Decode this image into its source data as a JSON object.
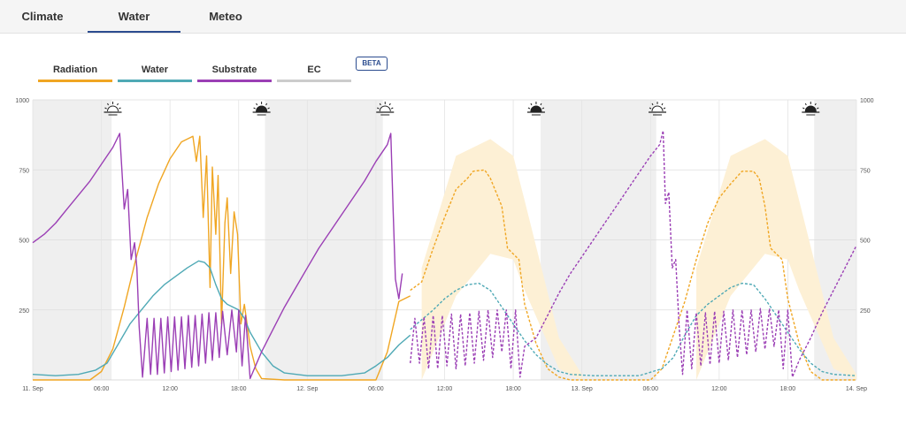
{
  "tabs": [
    {
      "label": "Climate",
      "active": false
    },
    {
      "label": "Water",
      "active": true
    },
    {
      "label": "Meteo",
      "active": false
    }
  ],
  "legend": [
    {
      "label": "Radiation",
      "color": "#f0a623"
    },
    {
      "label": "Water",
      "color": "#4fa9b5"
    },
    {
      "label": "Substrate",
      "color": "#9b3fb5"
    },
    {
      "label": "EC",
      "color": "#cccccc"
    }
  ],
  "beta_label": "BETA",
  "chart_data": {
    "type": "line",
    "ylim": [
      0,
      1000
    ],
    "y_ticks": [
      250,
      500,
      750,
      1000
    ],
    "x_ticks": [
      "11. Sep",
      "06:00",
      "12:00",
      "18:00",
      "12. Sep",
      "06:00",
      "12:00",
      "18:00",
      "13. Sep",
      "06:00",
      "12:00",
      "18:00",
      "14. Sep"
    ],
    "x_unit": "hours since 11. Sep 00:00",
    "night_shading": [
      [
        0,
        6.9
      ],
      [
        20.3,
        30.6
      ],
      [
        44.4,
        54.5
      ],
      [
        68.3,
        72
      ]
    ],
    "sunrise_hours": [
      7.0,
      30.8,
      54.6
    ],
    "sunset_hours": [
      20.0,
      44.0,
      68.0
    ],
    "forecast_start_hour": 33,
    "forecast_band": {
      "color": "#fdf0d5",
      "days": [
        {
          "x": [
            34,
            37,
            40,
            42,
            43,
            46,
            48
          ],
          "upper": [
            400,
            800,
            860,
            800,
            640,
            150,
            20
          ],
          "lower": [
            0,
            300,
            450,
            430,
            320,
            40,
            0
          ]
        },
        {
          "x": [
            58,
            61,
            64,
            66,
            67,
            70,
            72
          ],
          "upper": [
            400,
            800,
            860,
            800,
            640,
            150,
            20
          ],
          "lower": [
            0,
            300,
            450,
            430,
            320,
            40,
            0
          ]
        }
      ]
    },
    "series": [
      {
        "name": "Radiation",
        "color": "#f0a623",
        "dashed": false,
        "points": [
          [
            0,
            0
          ],
          [
            5,
            0
          ],
          [
            6,
            30
          ],
          [
            7,
            110
          ],
          [
            8,
            260
          ],
          [
            9,
            430
          ],
          [
            10,
            580
          ],
          [
            11,
            700
          ],
          [
            12,
            790
          ],
          [
            13,
            850
          ],
          [
            14,
            870
          ],
          [
            14.3,
            780
          ],
          [
            14.6,
            870
          ],
          [
            14.9,
            580
          ],
          [
            15.2,
            800
          ],
          [
            15.5,
            330
          ],
          [
            15.7,
            760
          ],
          [
            16,
            520
          ],
          [
            16.2,
            730
          ],
          [
            16.5,
            200
          ],
          [
            16.8,
            560
          ],
          [
            17,
            650
          ],
          [
            17.3,
            380
          ],
          [
            17.6,
            600
          ],
          [
            17.9,
            520
          ],
          [
            18.2,
            200
          ],
          [
            18.5,
            270
          ],
          [
            19,
            120
          ],
          [
            19.5,
            40
          ],
          [
            20,
            5
          ],
          [
            22,
            0
          ],
          [
            30,
            0
          ],
          [
            31,
            100
          ],
          [
            32,
            280
          ],
          [
            33,
            300
          ]
        ]
      },
      {
        "name": "Radiation forecast",
        "color": "#f0a623",
        "dashed": true,
        "points": [
          [
            33,
            320
          ],
          [
            34,
            350
          ],
          [
            35,
            470
          ],
          [
            36,
            580
          ],
          [
            37,
            680
          ],
          [
            38,
            720
          ],
          [
            38.5,
            745
          ],
          [
            39.5,
            750
          ],
          [
            40,
            720
          ],
          [
            41,
            620
          ],
          [
            41.5,
            470
          ],
          [
            42.5,
            430
          ],
          [
            43,
            270
          ],
          [
            44,
            130
          ],
          [
            45,
            40
          ],
          [
            46,
            10
          ],
          [
            47,
            0
          ],
          [
            54,
            0
          ],
          [
            55,
            40
          ],
          [
            56,
            160
          ],
          [
            57,
            280
          ],
          [
            58,
            430
          ],
          [
            59,
            560
          ],
          [
            60,
            650
          ],
          [
            61,
            700
          ],
          [
            62,
            745
          ],
          [
            63,
            745
          ],
          [
            63.5,
            720
          ],
          [
            64,
            620
          ],
          [
            64.5,
            470
          ],
          [
            65.5,
            430
          ],
          [
            66,
            290
          ],
          [
            67,
            130
          ],
          [
            68,
            30
          ],
          [
            69,
            0
          ],
          [
            72,
            0
          ]
        ]
      },
      {
        "name": "Water",
        "color": "#4fa9b5",
        "dashed": false,
        "points": [
          [
            0,
            20
          ],
          [
            2,
            15
          ],
          [
            4,
            20
          ],
          [
            5.5,
            35
          ],
          [
            6.5,
            60
          ],
          [
            7.5,
            130
          ],
          [
            8.5,
            200
          ],
          [
            9.5,
            250
          ],
          [
            10.5,
            300
          ],
          [
            11.5,
            340
          ],
          [
            12.5,
            370
          ],
          [
            13.5,
            400
          ],
          [
            14.5,
            425
          ],
          [
            15,
            420
          ],
          [
            15.5,
            400
          ],
          [
            16,
            340
          ],
          [
            16.5,
            290
          ],
          [
            17,
            270
          ],
          [
            18,
            250
          ],
          [
            18.5,
            220
          ],
          [
            19,
            170
          ],
          [
            20,
            100
          ],
          [
            21,
            50
          ],
          [
            22,
            25
          ],
          [
            24,
            15
          ],
          [
            27,
            15
          ],
          [
            29,
            25
          ],
          [
            30,
            50
          ],
          [
            31,
            80
          ],
          [
            32,
            125
          ],
          [
            33,
            160
          ]
        ]
      },
      {
        "name": "Water forecast",
        "color": "#4fa9b5",
        "dashed": true,
        "points": [
          [
            33,
            180
          ],
          [
            35,
            250
          ],
          [
            36,
            290
          ],
          [
            37,
            320
          ],
          [
            38,
            340
          ],
          [
            39,
            345
          ],
          [
            40,
            320
          ],
          [
            41,
            260
          ],
          [
            42,
            200
          ],
          [
            43,
            140
          ],
          [
            44,
            90
          ],
          [
            45,
            55
          ],
          [
            46,
            30
          ],
          [
            47,
            20
          ],
          [
            49,
            15
          ],
          [
            53,
            15
          ],
          [
            55,
            40
          ],
          [
            56,
            80
          ],
          [
            57,
            160
          ],
          [
            58,
            230
          ],
          [
            59,
            270
          ],
          [
            60,
            300
          ],
          [
            61,
            330
          ],
          [
            62,
            345
          ],
          [
            63,
            340
          ],
          [
            64,
            290
          ],
          [
            65,
            230
          ],
          [
            66,
            170
          ],
          [
            67,
            110
          ],
          [
            68,
            60
          ],
          [
            69,
            30
          ],
          [
            70,
            20
          ],
          [
            72,
            15
          ]
        ]
      },
      {
        "name": "Substrate",
        "color": "#9b3fb5",
        "dashed": false,
        "points": [
          [
            0,
            490
          ],
          [
            1,
            520
          ],
          [
            2,
            560
          ],
          [
            3,
            610
          ],
          [
            4,
            660
          ],
          [
            5,
            710
          ],
          [
            6,
            770
          ],
          [
            7,
            830
          ],
          [
            7.6,
            880
          ],
          [
            8,
            610
          ],
          [
            8.3,
            680
          ],
          [
            8.6,
            430
          ],
          [
            8.9,
            490
          ],
          [
            9.1,
            400
          ],
          [
            9.3,
            190
          ],
          [
            9.6,
            10
          ],
          [
            10,
            220
          ],
          [
            10.3,
            20
          ],
          [
            10.6,
            220
          ],
          [
            10.9,
            20
          ],
          [
            11.2,
            220
          ],
          [
            11.5,
            25
          ],
          [
            11.8,
            225
          ],
          [
            12.1,
            30
          ],
          [
            12.4,
            225
          ],
          [
            12.7,
            35
          ],
          [
            13,
            225
          ],
          [
            13.3,
            40
          ],
          [
            13.6,
            230
          ],
          [
            13.9,
            45
          ],
          [
            14.2,
            230
          ],
          [
            14.5,
            50
          ],
          [
            14.8,
            235
          ],
          [
            15.1,
            60
          ],
          [
            15.4,
            240
          ],
          [
            15.7,
            70
          ],
          [
            16,
            240
          ],
          [
            16.3,
            80
          ],
          [
            16.6,
            245
          ],
          [
            17,
            90
          ],
          [
            17.4,
            250
          ],
          [
            17.8,
            100
          ],
          [
            18,
            250
          ],
          [
            18.3,
            50
          ],
          [
            18.6,
            230
          ],
          [
            19,
            5
          ],
          [
            20,
            100
          ],
          [
            21,
            180
          ],
          [
            22,
            260
          ],
          [
            23,
            330
          ],
          [
            24,
            400
          ],
          [
            25,
            470
          ],
          [
            26,
            530
          ],
          [
            27,
            590
          ],
          [
            28,
            650
          ],
          [
            29,
            710
          ],
          [
            30,
            780
          ],
          [
            31,
            840
          ],
          [
            31.3,
            880
          ],
          [
            31.5,
            610
          ],
          [
            31.7,
            360
          ],
          [
            32,
            290
          ],
          [
            32.3,
            380
          ]
        ]
      },
      {
        "name": "Substrate forecast",
        "color": "#9b3fb5",
        "dashed": true,
        "points": [
          [
            33,
            60
          ],
          [
            33.4,
            220
          ],
          [
            33.8,
            60
          ],
          [
            34.2,
            225
          ],
          [
            34.6,
            40
          ],
          [
            35,
            230
          ],
          [
            35.4,
            40
          ],
          [
            35.8,
            230
          ],
          [
            36.2,
            50
          ],
          [
            36.6,
            235
          ],
          [
            37,
            40
          ],
          [
            37.4,
            235
          ],
          [
            37.8,
            50
          ],
          [
            38.2,
            240
          ],
          [
            38.6,
            60
          ],
          [
            39,
            245
          ],
          [
            39.4,
            70
          ],
          [
            39.8,
            250
          ],
          [
            40.2,
            80
          ],
          [
            40.6,
            250
          ],
          [
            41,
            100
          ],
          [
            41.4,
            250
          ],
          [
            41.8,
            40
          ],
          [
            42.2,
            250
          ],
          [
            42.6,
            10
          ],
          [
            43,
            120
          ],
          [
            44,
            150
          ],
          [
            45,
            230
          ],
          [
            46,
            310
          ],
          [
            47,
            380
          ],
          [
            48,
            440
          ],
          [
            49,
            500
          ],
          [
            50,
            560
          ],
          [
            51,
            620
          ],
          [
            52,
            680
          ],
          [
            53,
            740
          ],
          [
            54,
            800
          ],
          [
            54.8,
            840
          ],
          [
            55.1,
            890
          ],
          [
            55.3,
            630
          ],
          [
            55.6,
            670
          ],
          [
            55.9,
            400
          ],
          [
            56.2,
            430
          ],
          [
            56.5,
            190
          ],
          [
            56.8,
            20
          ],
          [
            57.2,
            250
          ],
          [
            57.6,
            40
          ],
          [
            58,
            240
          ],
          [
            58.4,
            50
          ],
          [
            58.8,
            240
          ],
          [
            59.2,
            55
          ],
          [
            59.6,
            245
          ],
          [
            60,
            60
          ],
          [
            60.4,
            245
          ],
          [
            60.8,
            70
          ],
          [
            61.2,
            250
          ],
          [
            61.6,
            80
          ],
          [
            62,
            250
          ],
          [
            62.4,
            90
          ],
          [
            62.8,
            250
          ],
          [
            63.2,
            100
          ],
          [
            63.6,
            255
          ],
          [
            64,
            110
          ],
          [
            64.4,
            255
          ],
          [
            64.8,
            120
          ],
          [
            65.2,
            250
          ],
          [
            65.6,
            40
          ],
          [
            66,
            250
          ],
          [
            66.4,
            10
          ],
          [
            67,
            70
          ],
          [
            68,
            150
          ],
          [
            69,
            240
          ],
          [
            70,
            320
          ],
          [
            71,
            400
          ],
          [
            72,
            480
          ]
        ]
      }
    ]
  }
}
